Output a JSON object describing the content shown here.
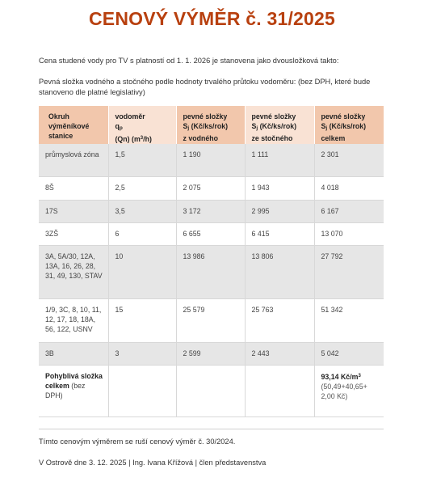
{
  "title": "CENOVÝ VÝMĚR č. 31/2025",
  "intro": "Cena studené vody pro TV s platností od 1. 1. 2026 je stanovena jako dvousložková takto:",
  "fixed_note": "Pevná složka vodného a stočného podle hodnoty trvalého průtoku vodoměru: (bez DPH, které bude stanoveno dle platné legislativy)",
  "table": {
    "headers": {
      "col1": [
        "Okruh",
        "výměníkové",
        "stanice"
      ],
      "col2_line1": "vodoměr",
      "col2_q": "q",
      "col2_q_sub": "p",
      "col2_line3": "(Qn) (m",
      "col2_sup": "3",
      "col2_line3_end": "/h)",
      "col3_line1": "pevné složky",
      "col3_s": "S",
      "col3_s_sub": "j",
      "col3_unit": " (Kč/ks/rok)",
      "col3_line3": "z vodného",
      "col4_line1": "pevné složky",
      "col4_s": "S",
      "col4_s_sub": "j",
      "col4_unit": " (Kč/ks/rok)",
      "col4_line3": "ze stočného",
      "col5_line1": "pevné složky",
      "col5_s": "S",
      "col5_s_sub": "j",
      "col5_unit": " (Kč/ks/rok)",
      "col5_line3": "celkem"
    },
    "rows": [
      {
        "station": "průmyslová zóna",
        "meter": "1,5",
        "water": "1 190",
        "sewer": "1 111",
        "total": "2 301"
      },
      {
        "station": "8Š",
        "meter": "2,5",
        "water": "2 075",
        "sewer": "1 943",
        "total": "4 018"
      },
      {
        "station": "17S",
        "meter": "3,5",
        "water": "3 172",
        "sewer": "2 995",
        "total": "6 167"
      },
      {
        "station": "3ZŠ",
        "meter": "6",
        "water": "6 655",
        "sewer": "6 415",
        "total": "13 070"
      },
      {
        "station": "3A, 5A/30, 12A, 13A, 16, 26, 28, 31, 49, 130, STAV",
        "meter": "10",
        "water": "13 986",
        "sewer": "13 806",
        "total": "27 792"
      },
      {
        "station": "1/9, 3C, 8, 10, 11, 12, 17, 18, 18A, 56, 122, USNV",
        "meter": "15",
        "water": "25 579",
        "sewer": "25 763",
        "total": "51 342"
      },
      {
        "station": "3B",
        "meter": "3",
        "water": "2 599",
        "sewer": "2 443",
        "total": "5 042"
      }
    ],
    "variable": {
      "label_bold": "Pohyblivá složka celkem",
      "label_rest": " (bez DPH)",
      "value": "93,14 Kč/m",
      "value_sup": "3",
      "detail": "(50,49+40,65+ 2,00 Kč)"
    }
  },
  "cancel_note": "Tímto cenovým výměrem se ruší cenový výměr č. 30/2024.",
  "signature": "V Ostrově dne 3. 12. 2025 | Ing. Ivana Křížová | člen představenstva"
}
